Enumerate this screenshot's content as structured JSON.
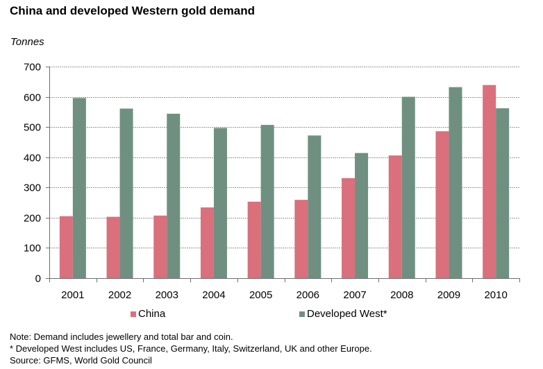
{
  "chart_data": {
    "type": "bar",
    "title": "China and developed Western gold demand",
    "ylabel": "Tonnes",
    "xlabel": "",
    "categories": [
      "2001",
      "2002",
      "2003",
      "2004",
      "2005",
      "2006",
      "2007",
      "2008",
      "2009",
      "2010"
    ],
    "series": [
      {
        "name": "China",
        "color": "#d9707c",
        "values": [
          205,
          203,
          207,
          234,
          253,
          259,
          331,
          406,
          486,
          639
        ]
      },
      {
        "name": "Developed West*",
        "color": "#6f9080",
        "values": [
          596,
          561,
          544,
          497,
          507,
          472,
          414,
          600,
          632,
          562
        ]
      }
    ],
    "ylim": [
      0,
      700
    ],
    "yticks": [
      "0",
      "100",
      "200",
      "300",
      "400",
      "500",
      "600",
      "700"
    ],
    "grid": true,
    "legend_position": "bottom"
  },
  "notes": [
    "Note: Demand includes jewellery and total bar and coin.",
    "* Developed West includes US, France, Germany, Italy, Switzerland, UK and other Europe.",
    "Source: GFMS, World Gold Council"
  ]
}
